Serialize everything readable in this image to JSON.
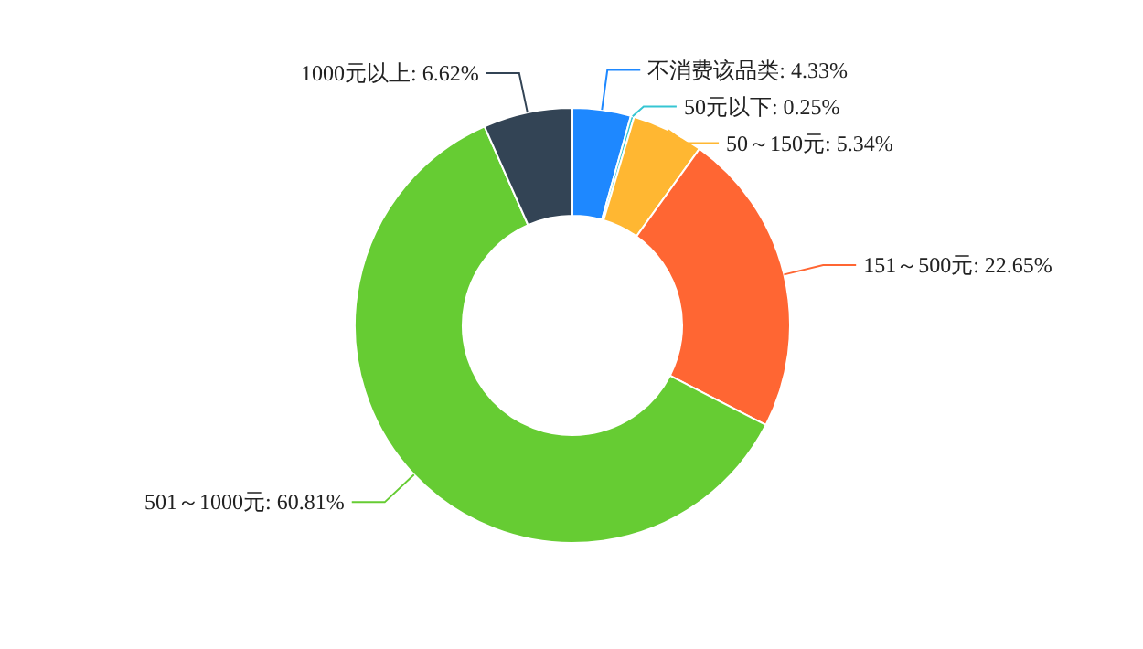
{
  "chart_data": {
    "type": "donut",
    "categories": [
      "不消费该品类",
      "50元以下",
      "50～150元",
      "151～500元",
      "501～1000元",
      "1000元以上"
    ],
    "values": [
      4.33,
      0.25,
      5.34,
      22.65,
      60.81,
      6.62
    ],
    "value_labels": [
      ": 4.33%",
      ": 0.25%",
      ": 5.34%",
      ": 22.65%",
      ": 60.81%",
      ": 6.62%"
    ],
    "colors": [
      "#1e88ff",
      "#36c6d3",
      "#ffb732",
      "#ff6633",
      "#66cc33",
      "#334455"
    ],
    "legend": false
  }
}
